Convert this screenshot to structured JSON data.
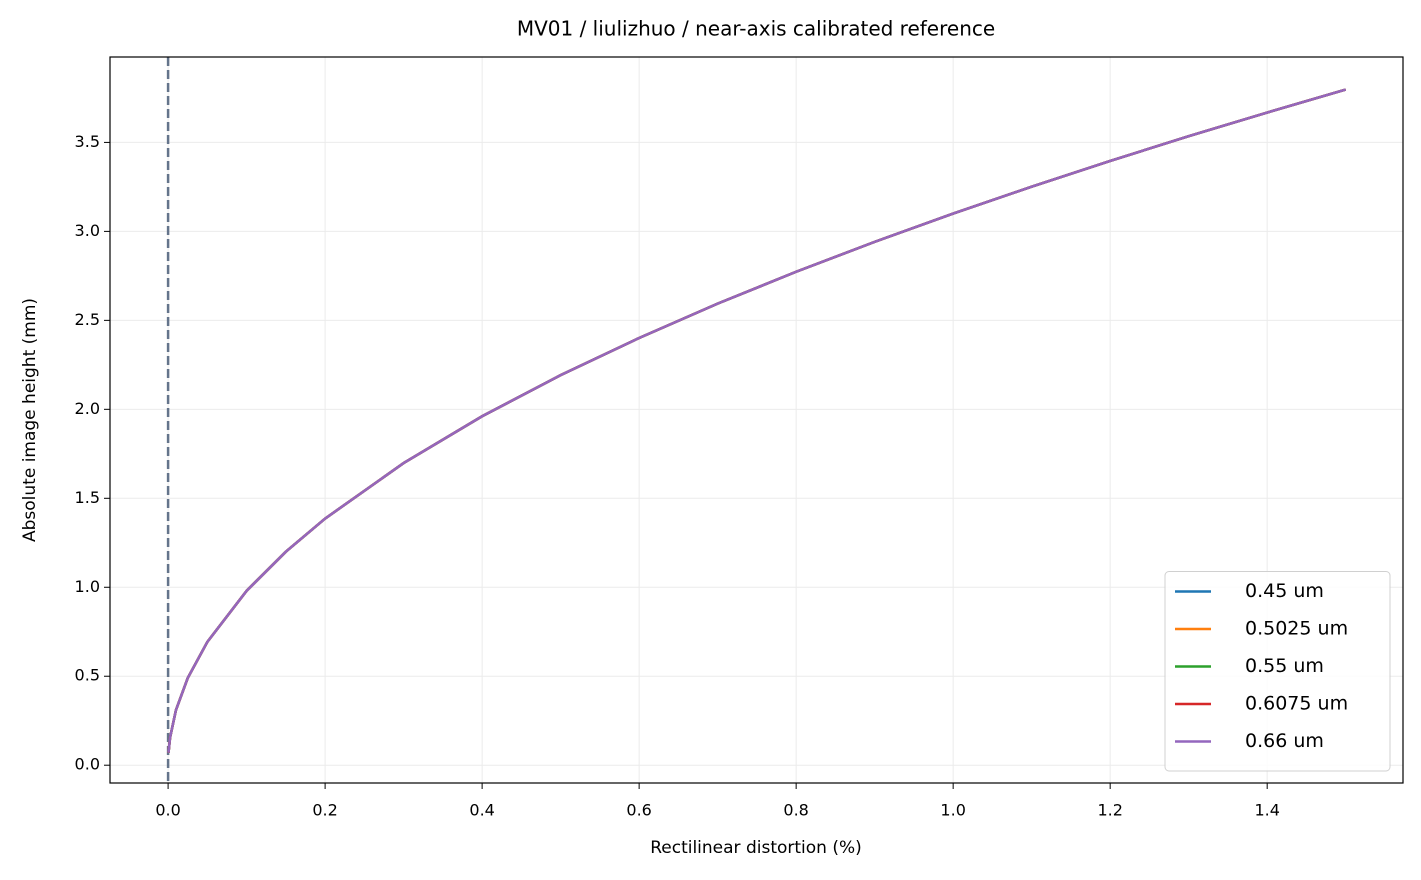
{
  "chart_data": {
    "type": "line",
    "title": "MV01 / liulizhuo / near-axis calibrated reference",
    "xlabel": "Rectilinear distortion (%)",
    "ylabel": "Absolute image height (mm)",
    "x": [
      0.0005,
      0.0025,
      0.01,
      0.025,
      0.05,
      0.1,
      0.15,
      0.2,
      0.3,
      0.4,
      0.5,
      0.6,
      0.7,
      0.8,
      0.9,
      1.0,
      1.1,
      1.2,
      1.3,
      1.4,
      1.5
    ],
    "series": [
      {
        "name": "0.45 um",
        "color": "#1f77b4",
        "values": [
          0.07,
          0.155,
          0.31,
          0.49,
          0.693,
          0.98,
          1.2,
          1.386,
          1.698,
          1.961,
          2.192,
          2.401,
          2.594,
          2.773,
          2.941,
          3.1,
          3.251,
          3.396,
          3.535,
          3.668,
          3.797
        ]
      },
      {
        "name": "0.5025 um",
        "color": "#ff7f0e",
        "values": [
          0.07,
          0.155,
          0.31,
          0.49,
          0.693,
          0.98,
          1.2,
          1.386,
          1.698,
          1.961,
          2.192,
          2.401,
          2.594,
          2.773,
          2.941,
          3.1,
          3.251,
          3.396,
          3.535,
          3.668,
          3.797
        ]
      },
      {
        "name": "0.55 um",
        "color": "#2ca02c",
        "values": [
          0.07,
          0.155,
          0.31,
          0.49,
          0.693,
          0.98,
          1.2,
          1.386,
          1.698,
          1.961,
          2.192,
          2.401,
          2.594,
          2.773,
          2.941,
          3.1,
          3.251,
          3.396,
          3.535,
          3.668,
          3.797
        ]
      },
      {
        "name": "0.6075 um",
        "color": "#d62728",
        "values": [
          0.07,
          0.155,
          0.31,
          0.49,
          0.693,
          0.98,
          1.2,
          1.386,
          1.698,
          1.961,
          2.192,
          2.401,
          2.594,
          2.773,
          2.941,
          3.1,
          3.251,
          3.396,
          3.535,
          3.668,
          3.797
        ]
      },
      {
        "name": "0.66 um",
        "color": "#9467bd",
        "values": [
          0.07,
          0.155,
          0.31,
          0.49,
          0.693,
          0.98,
          1.2,
          1.386,
          1.698,
          1.961,
          2.192,
          2.401,
          2.594,
          2.773,
          2.941,
          3.1,
          3.251,
          3.396,
          3.535,
          3.668,
          3.797
        ]
      }
    ],
    "xlim": [
      -0.074,
      1.573
    ],
    "ylim": [
      -0.1,
      3.98
    ],
    "xticks": [
      {
        "value": 0,
        "label": "0.0"
      },
      0.2,
      0.4,
      0.6,
      0.8,
      {
        "value": 1,
        "label": "1.0"
      },
      1.2,
      1.4
    ],
    "yticks": [
      {
        "value": 0,
        "label": "0.0"
      },
      0.5,
      {
        "value": 1,
        "label": "1.0"
      },
      1.5,
      {
        "value": 2,
        "label": "2.0"
      },
      2.5,
      {
        "value": 3,
        "label": "3.0"
      },
      3.5
    ],
    "vline": 0,
    "vline_color": "#64748b",
    "grid": true,
    "legend": "lower right"
  }
}
